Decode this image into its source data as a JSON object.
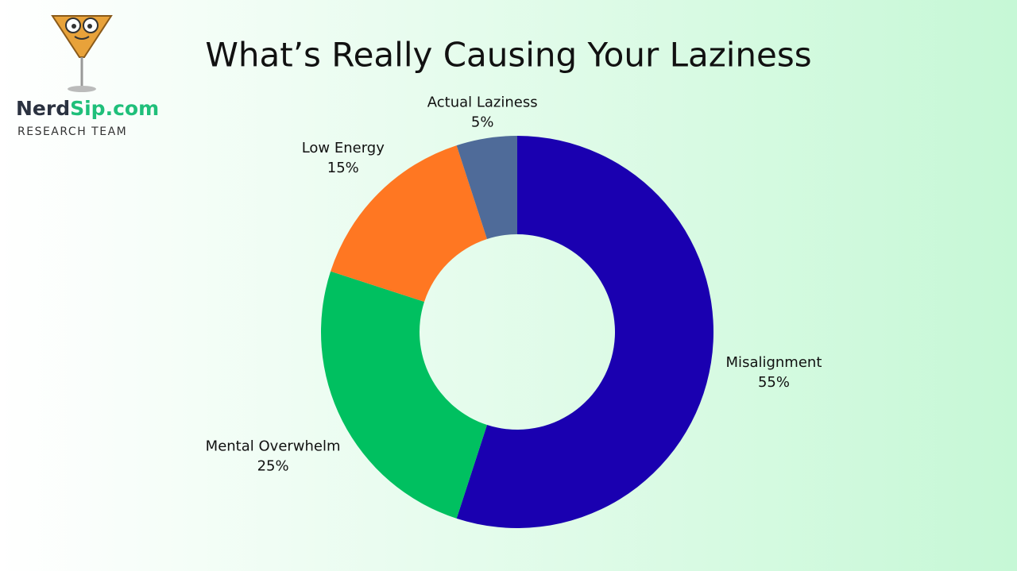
{
  "logo": {
    "brand_dark": "Nerd",
    "brand_green": "Sip.com",
    "subtitle": "RESEARCH TEAM"
  },
  "chart_data": {
    "type": "donut",
    "title": "What’s Really Causing Your Laziness",
    "categories": [
      "Misalignment",
      "Mental Overwhelm",
      "Low Energy",
      "Actual Laziness"
    ],
    "values": [
      55,
      25,
      15,
      5
    ],
    "value_labels": [
      "55%",
      "25%",
      "15%",
      "5%"
    ],
    "colors": [
      "#1a00b0",
      "#00c060",
      "#ff7722",
      "#4f6b99"
    ]
  }
}
